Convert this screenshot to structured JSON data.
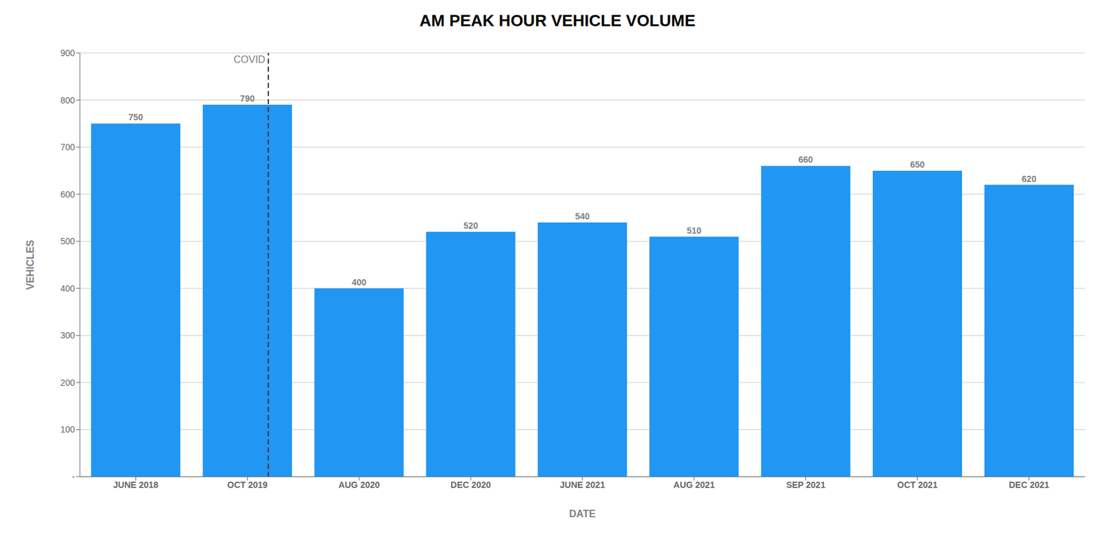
{
  "chart_data": {
    "type": "bar",
    "title": "AM PEAK HOUR VEHICLE VOLUME",
    "categories": [
      "JUNE 2018",
      "OCT 2019",
      "AUG 2020",
      "DEC 2020",
      "JUNE 2021",
      "AUG 2021",
      "SEP 2021",
      "OCT 2021",
      "DEC 2021"
    ],
    "values": [
      750,
      790,
      400,
      520,
      540,
      510,
      660,
      650,
      620
    ],
    "color": "#2196F3",
    "x_label": "DATE",
    "y_label": "VEHICLES",
    "ylim": [
      0,
      900
    ],
    "yticks": [
      {
        "value": 0,
        "label": "-"
      },
      100,
      200,
      300,
      400,
      500,
      600,
      700,
      800,
      900
    ],
    "grid": true,
    "data_labels": true,
    "annotations": [
      {
        "text": "COVID",
        "between": [
          "OCT 2019",
          "AUG 2020"
        ],
        "line_style": "dashed"
      }
    ]
  }
}
